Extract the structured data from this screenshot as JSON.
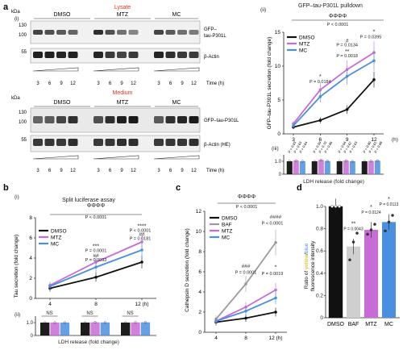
{
  "panel_letters": {
    "a": "a",
    "b": "b",
    "c": "c",
    "d": "d"
  },
  "blots": {
    "kda_label": "kDa",
    "lysate": {
      "header": "Lysate",
      "sub_label": "(i)",
      "groups": [
        "DMSO",
        "MTZ",
        "MC"
      ],
      "markers": [
        "130",
        "100",
        "55"
      ],
      "band1_label_l1": "GFP–",
      "band1_label_l2": "tau-P301L",
      "band2_label": "β-Actin",
      "times": [
        "3",
        "6",
        "9",
        "12"
      ],
      "time_label": "Time (h)"
    },
    "medium": {
      "header": "Medium",
      "groups": [
        "DMSO",
        "MTZ",
        "MC"
      ],
      "markers": [
        "130",
        "100",
        "55"
      ],
      "band1_label": "GFP–tau-P301L",
      "band2_label": "β-Actin (HE)",
      "times": [
        "3",
        "6",
        "9",
        "12"
      ],
      "time_label": "Time (h)"
    }
  },
  "colors": {
    "DMSO": "#111111",
    "MTZ": "#c86bd6",
    "MC": "#4a8fe0",
    "BAF": "#9a9a9a",
    "red": "#e8321e",
    "yellow": "#d8b400",
    "blue": "#4a8fe0"
  },
  "chart_data": [
    {
      "id": "a_ii",
      "type": "line",
      "sub_label": "(ii)",
      "title": "GFP–tau-P301L pulldown",
      "ylabel": "GFP–tau-P301L secretion (fold change)",
      "xlabel": "(h)",
      "categories": [
        "3",
        "6",
        "9",
        "12"
      ],
      "ylim": [
        0,
        15
      ],
      "yticks": [
        "0",
        "5",
        "10",
        "15"
      ],
      "series": [
        {
          "name": "DMSO",
          "values": [
            1.0,
            2.0,
            3.6,
            8.0
          ]
        },
        {
          "name": "MTZ",
          "values": [
            1.5,
            6.5,
            9.5,
            12.0
          ]
        },
        {
          "name": "MC",
          "values": [
            1.2,
            5.5,
            8.5,
            10.8
          ]
        }
      ],
      "annotations": {
        "diamonds": "ΦΦΦΦ",
        "p_top": "P < 0.0001",
        "at_6_sym": "*",
        "at_6_p": "P = 0.0184",
        "at_9_sym1": "#",
        "at_9_p1": "P = 0.0134",
        "at_9_sym2": "**",
        "at_9_p2": "P = 0.0018",
        "at_12_sym": "*",
        "at_12_p": "P = 0.0395"
      }
    },
    {
      "id": "a_iii",
      "type": "bar",
      "sub_label": "(iii)",
      "xlabel": "LDH release (fold change)",
      "ylim": [
        0,
        1.5
      ],
      "yticks": [
        "0",
        "1.0"
      ],
      "groups": [
        "3",
        "6",
        "9",
        "12"
      ],
      "series": [
        {
          "name": "DMSO",
          "values": [
            1.0,
            1.0,
            1.0,
            1.0
          ]
        },
        {
          "name": "MTZ",
          "values": [
            1.05,
            1.1,
            1.05,
            1.02
          ]
        },
        {
          "name": "MC",
          "values": [
            1.0,
            1.02,
            1.0,
            1.05
          ]
        }
      ],
      "p_values": [
        "P = 0.93",
        "P = 0.63",
        "P = 0.64",
        "P = 0.59",
        "P = 0.70",
        "P = 0.86",
        "P = 0.94",
        "P = 0.67",
        "P = 0.63",
        "P = 0.80",
        "P = 0.61",
        "P = 0.88"
      ]
    },
    {
      "id": "b_i",
      "type": "line",
      "sub_label": "(i)",
      "title": "Split luciferase assay",
      "ylabel": "Tau secretion (fold change)",
      "xlabel": "(h)",
      "categories": [
        "4",
        "8",
        "12"
      ],
      "x_tick_labels": [
        "4",
        "8",
        "12 (h)"
      ],
      "ylim": [
        0,
        8
      ],
      "yticks": [
        "0",
        "2",
        "4",
        "6",
        "8"
      ],
      "series": [
        {
          "name": "DMSO",
          "values": [
            1.0,
            2.1,
            3.6
          ]
        },
        {
          "name": "MTZ",
          "values": [
            1.3,
            3.6,
            5.6
          ]
        },
        {
          "name": "MC",
          "values": [
            1.2,
            3.1,
            4.8
          ]
        }
      ],
      "annotations": {
        "diamonds": "ΦΦΦΦ",
        "p_top": "P < 0.0001",
        "at_8_sym1": "***",
        "at_8_p1": "P = 0.0001",
        "at_8_sym2": "##",
        "at_8_p2": "P = 0.0093",
        "at_12_sym1": "****",
        "at_12_p1": "P < 0.0001",
        "at_12_sym2": "##",
        "at_12_p2": "P = 0.0181"
      }
    },
    {
      "id": "b_ii",
      "type": "bar",
      "sub_label": "(ii)",
      "xlabel": "LDH release (fold change)",
      "ylim": [
        0,
        1.5
      ],
      "yticks": [
        "0",
        "1.0"
      ],
      "groups": [
        "4",
        "8",
        "12"
      ],
      "series": [
        {
          "name": "DMSO",
          "values": [
            1.0,
            1.0,
            1.0
          ]
        },
        {
          "name": "MTZ",
          "values": [
            1.0,
            1.02,
            1.01
          ]
        },
        {
          "name": "MC",
          "values": [
            1.0,
            1.01,
            1.02
          ]
        }
      ],
      "group_labels": [
        "NS",
        "NS",
        "NS"
      ]
    },
    {
      "id": "c",
      "type": "line",
      "ylabel": "Cathepsin D secretion (fold change)",
      "xlabel": "(h)",
      "categories": [
        "4",
        "8",
        "12"
      ],
      "x_tick_labels": [
        "4",
        "8",
        "12 (h)"
      ],
      "ylim": [
        0,
        12
      ],
      "yticks": [
        "0",
        "2",
        "4",
        "6",
        "8",
        "10",
        "12"
      ],
      "series": [
        {
          "name": "DMSO",
          "values": [
            1.0,
            1.4,
            2.0
          ]
        },
        {
          "name": "BAF",
          "values": [
            1.3,
            4.8,
            8.9
          ]
        },
        {
          "name": "MTZ",
          "values": [
            1.1,
            2.5,
            4.2
          ]
        },
        {
          "name": "MC",
          "values": [
            1.1,
            2.1,
            3.4
          ]
        }
      ],
      "annotations": {
        "diamonds": "ΦΦΦΦ",
        "p_top": "P < 0.0001",
        "at_8_sym": "###",
        "at_8_p": "P = 0.0001",
        "at_12_sym1": "####",
        "at_12_p1": "P < 0.0001",
        "at_12_sym2": "*",
        "at_12_p2": "P = 0.0019"
      }
    },
    {
      "id": "d",
      "type": "bar",
      "ylabel_parts": [
        "Ratio of ",
        "yellow",
        "/",
        "blue"
      ],
      "ylabel_line2": "fluorescence intensity",
      "categories": [
        "DMSO",
        "BAF",
        "MTZ",
        "MC"
      ],
      "values": [
        1.0,
        0.64,
        0.79,
        0.86
      ],
      "points": [
        [
          1.0,
          1.0,
          1.0
        ],
        [
          0.52,
          0.68,
          0.76
        ],
        [
          0.75,
          0.79,
          0.84
        ],
        [
          0.78,
          0.86,
          0.92
        ]
      ],
      "ylim": [
        0,
        1.0
      ],
      "yticks": [
        "0",
        "0.2",
        "0.4",
        "0.6",
        "0.8",
        "1.0"
      ],
      "annotations": [
        {
          "sym": "**",
          "p": "P = 0.0043"
        },
        {
          "sym": "*",
          "p": "P = 0.0124"
        },
        {
          "sym": "*",
          "p": "P = 0.0113"
        }
      ]
    }
  ]
}
